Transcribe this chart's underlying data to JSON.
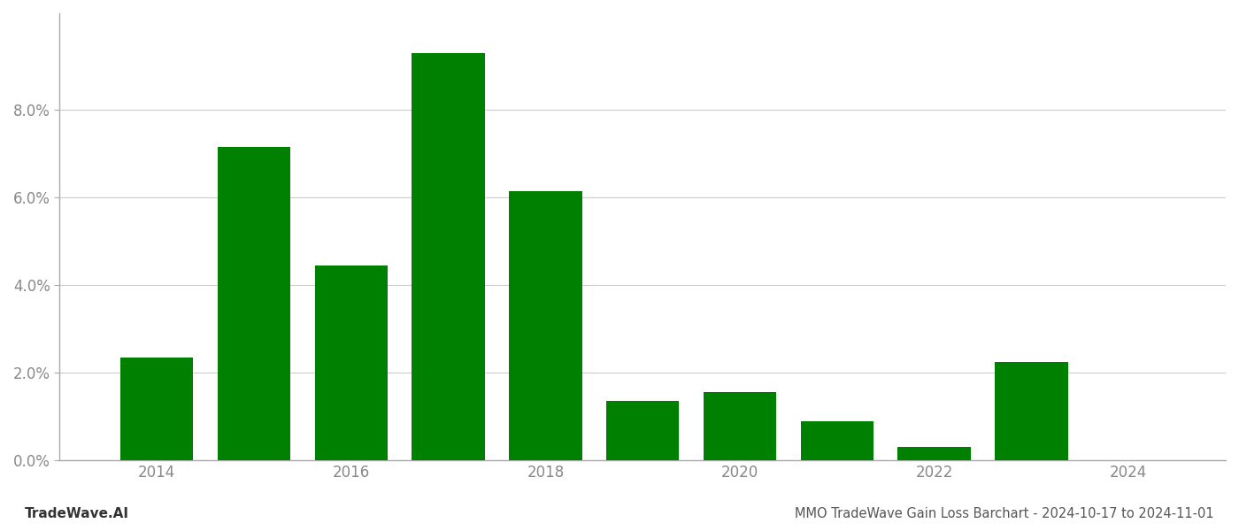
{
  "years": [
    2014,
    2015,
    2016,
    2017,
    2018,
    2019,
    2020,
    2021,
    2022,
    2023,
    2024
  ],
  "values": [
    0.0235,
    0.0715,
    0.0445,
    0.093,
    0.0615,
    0.0135,
    0.0155,
    0.009,
    0.003,
    0.0225,
    0.0
  ],
  "bar_color": "#008000",
  "background_color": "#ffffff",
  "title": "MMO TradeWave Gain Loss Barchart - 2024-10-17 to 2024-11-01",
  "watermark": "TradeWave.AI",
  "ylim": [
    0,
    0.102
  ],
  "ytick_values": [
    0.0,
    0.02,
    0.04,
    0.06,
    0.08
  ],
  "ytick_labels": [
    "0.0%",
    "2.0%",
    "4.0%",
    "6.0%",
    "8.0%"
  ],
  "xtick_years": [
    2014,
    2016,
    2018,
    2020,
    2022,
    2024
  ],
  "grid_color": "#cccccc",
  "axis_label_color": "#888888",
  "title_color": "#555555",
  "watermark_color": "#333333",
  "bar_width": 0.75,
  "spine_color": "#aaaaaa"
}
